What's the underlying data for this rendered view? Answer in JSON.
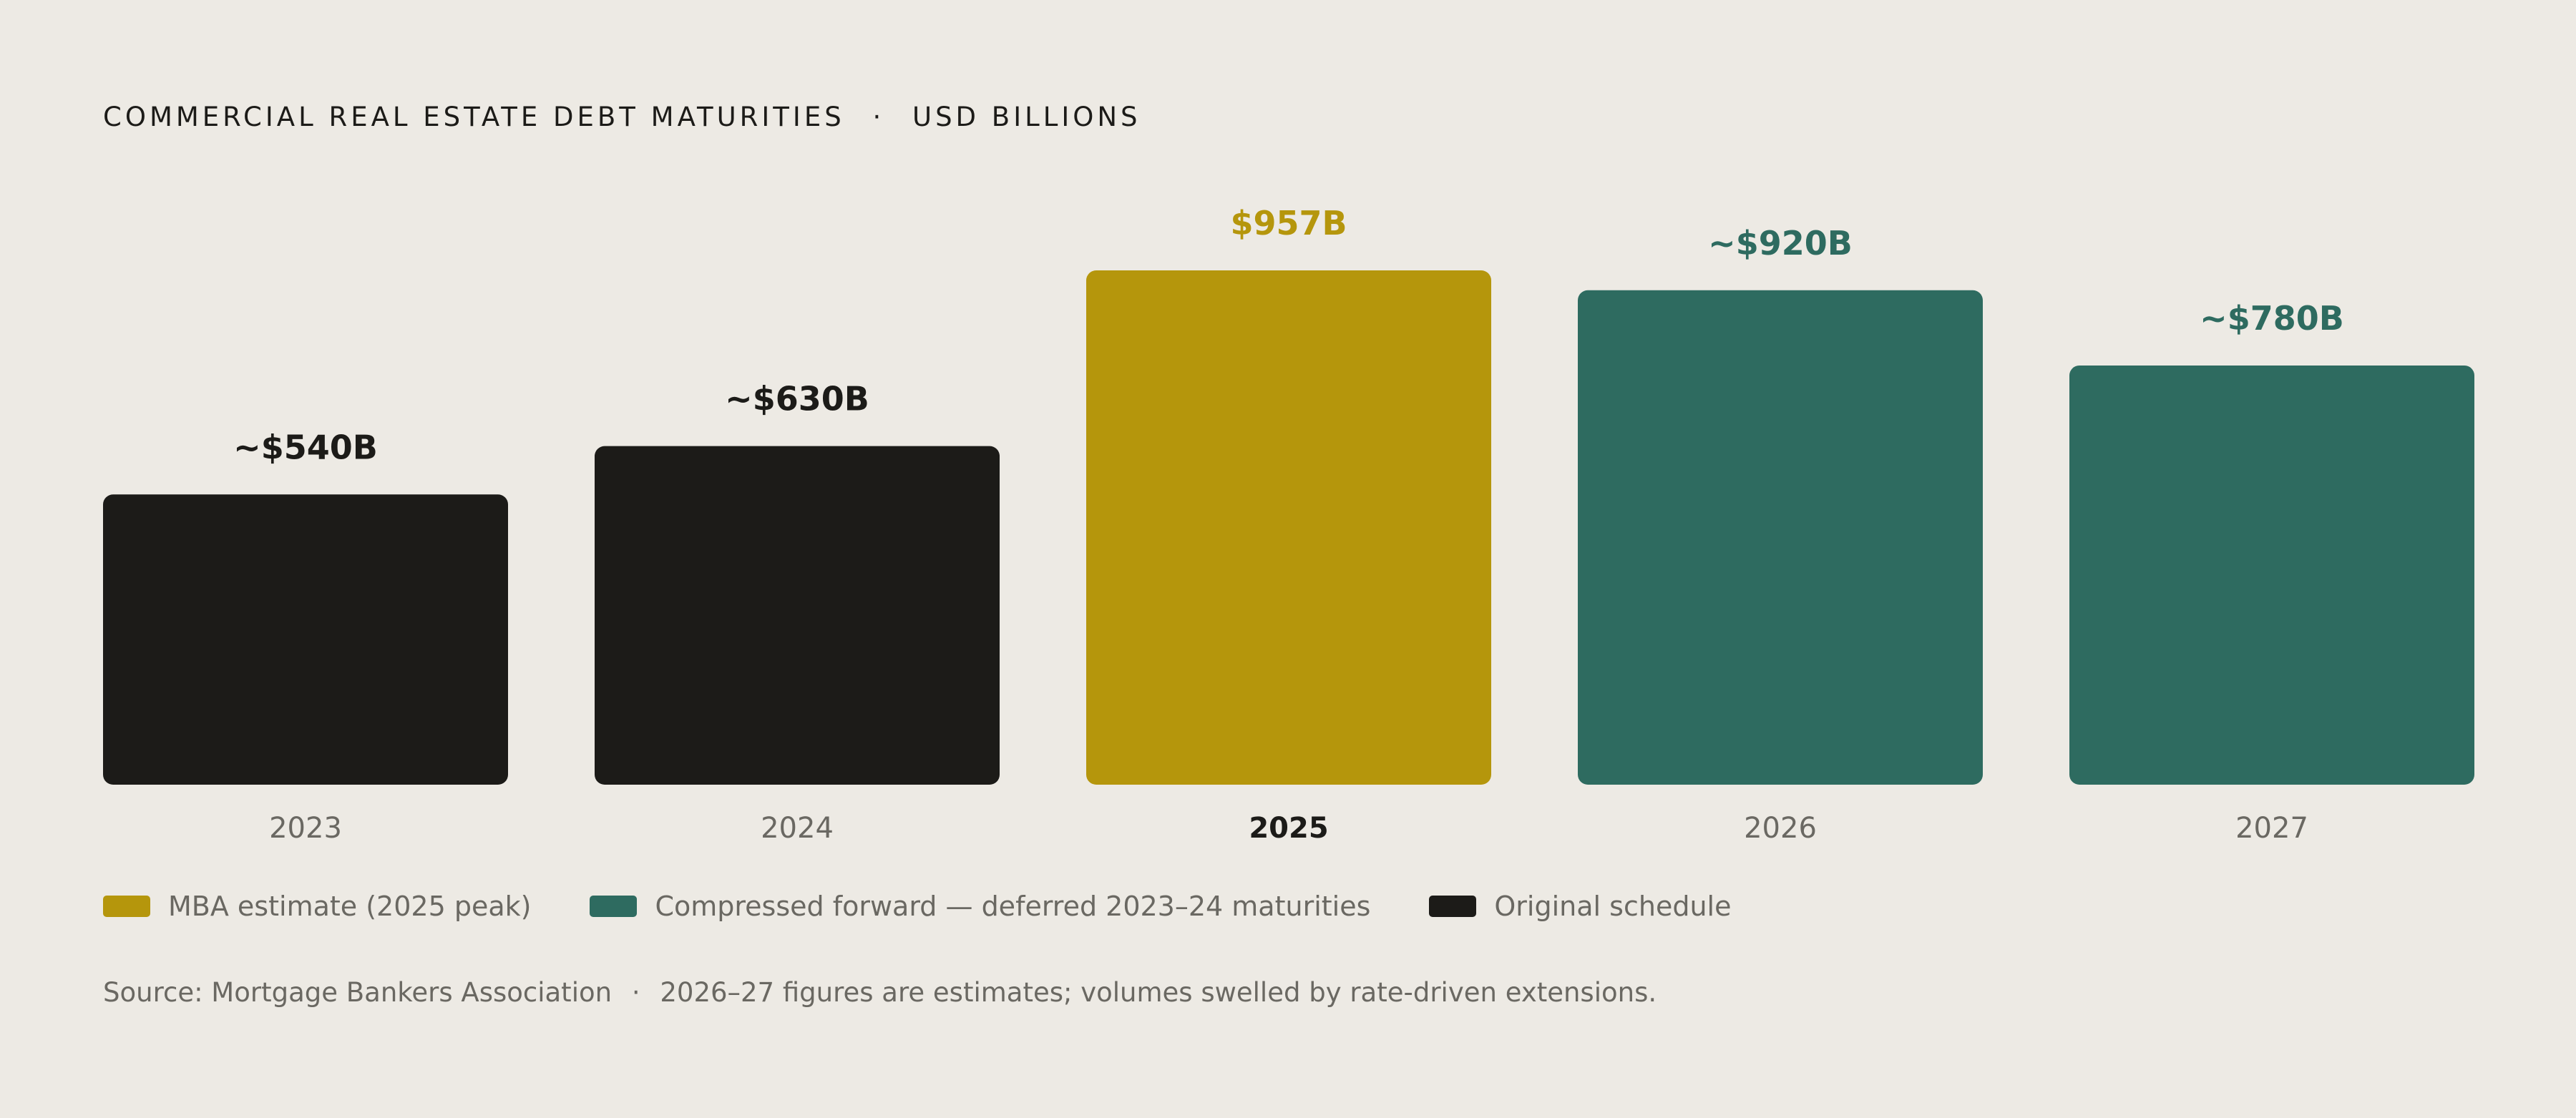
{
  "title": "COMMERCIAL REAL ESTATE DEBT MATURITIES",
  "title_separator": "·",
  "title_unit": "USD BILLIONS",
  "colors": {
    "background": "#EDEAE4",
    "original": "#1C1B18",
    "mba": "#B5960C",
    "forward": "#2E6B60",
    "muted_text": "#6A6862"
  },
  "chart_data": {
    "type": "bar",
    "ylabel": "",
    "xlabel": "",
    "ylim": [
      0,
      957
    ],
    "grid": false,
    "legend_placement": "bottom-left",
    "categories": [
      "2023",
      "2024",
      "2025",
      "2026",
      "2027"
    ],
    "values": [
      540,
      630,
      957,
      920,
      780
    ],
    "value_labels": [
      "~$540B",
      "~$630B",
      "$957B",
      "~$920B",
      "~$780B"
    ],
    "bar_groups": [
      "original",
      "original",
      "mba",
      "forward",
      "forward"
    ],
    "highlight_category": "2025"
  },
  "legend": [
    {
      "key": "mba",
      "label": "MBA estimate (2025 peak)"
    },
    {
      "key": "forward",
      "label": "Compressed forward — deferred 2023–24 maturities"
    },
    {
      "key": "original",
      "label": "Original schedule"
    }
  ],
  "source": {
    "label": "Source: Mortgage Bankers Association",
    "separator": "·",
    "note": "2026–27 figures are estimates; volumes swelled by rate-driven extensions."
  }
}
